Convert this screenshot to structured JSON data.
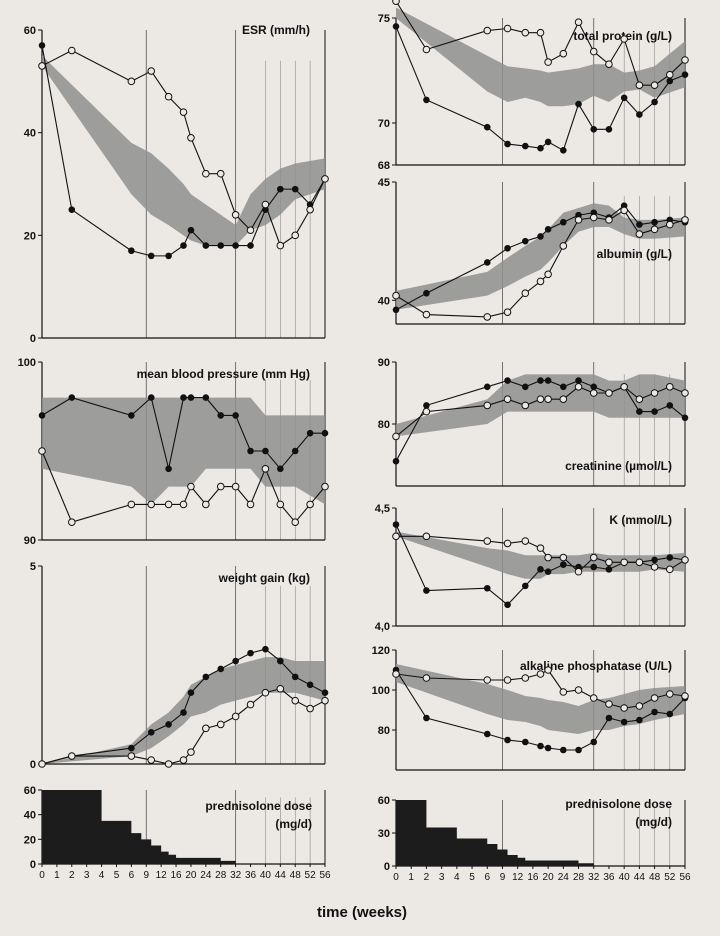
{
  "figure": {
    "xlabel": "time (weeks)"
  },
  "x_weeks": [
    0,
    1,
    2,
    3,
    4,
    5,
    6,
    8,
    10,
    12,
    14,
    16,
    18,
    20,
    22,
    24,
    26,
    28,
    30,
    32,
    34,
    36,
    38,
    40,
    42,
    44,
    46,
    48,
    50,
    52,
    54,
    56
  ],
  "chart_data": [
    {
      "id": "esr",
      "type": "line",
      "title": "ESR (mm/h)",
      "ylim": [
        0,
        60
      ],
      "yticks": [
        0,
        20,
        40,
        60
      ],
      "ytick_labels": [
        "0",
        "20",
        "40",
        "60"
      ],
      "x": [
        0,
        2,
        6,
        10,
        14,
        18,
        20,
        24,
        28,
        32,
        36,
        40,
        44,
        48,
        52,
        56
      ],
      "series": [
        {
          "marker": "filled",
          "values": [
            57,
            25,
            17,
            16,
            16,
            18,
            21,
            18,
            18,
            18,
            18,
            25,
            29,
            29,
            26,
            31
          ]
        },
        {
          "marker": "open",
          "values": [
            53,
            56,
            50,
            52,
            47,
            44,
            39,
            32,
            32,
            24,
            21,
            26,
            18,
            20,
            25,
            31
          ]
        }
      ],
      "band": {
        "lower": [
          53,
          28,
          24,
          22,
          20,
          19,
          18,
          18,
          18,
          21,
          22,
          24,
          27,
          29
        ],
        "upper": [
          55,
          38,
          36,
          33,
          30,
          28,
          26,
          24,
          22,
          28,
          31,
          33,
          34,
          35
        ],
        "x": [
          0,
          6,
          10,
          14,
          18,
          20,
          24,
          28,
          32,
          36,
          40,
          44,
          48,
          56
        ]
      },
      "vlines": [
        9,
        32
      ]
    },
    {
      "id": "bp",
      "type": "line",
      "title": "mean blood pressure (mm Hg)",
      "ylim": [
        90,
        100
      ],
      "yticks": [
        90,
        100
      ],
      "ytick_labels": [
        "90",
        "100"
      ],
      "x": [
        0,
        2,
        6,
        10,
        14,
        18,
        20,
        24,
        28,
        32,
        36,
        40,
        44,
        48,
        52,
        56
      ],
      "series": [
        {
          "marker": "filled",
          "values": [
            97,
            98,
            97,
            98,
            94,
            98,
            98,
            98,
            97,
            97,
            95,
            95,
            94,
            95,
            96,
            96
          ]
        },
        {
          "marker": "open",
          "values": [
            95,
            91,
            92,
            92,
            92,
            92,
            93,
            92,
            93,
            93,
            92,
            94,
            92,
            91,
            92,
            93
          ]
        }
      ],
      "band": {
        "lower": [
          94,
          93,
          92,
          93,
          93,
          93,
          94,
          94,
          94,
          94,
          93,
          93,
          93,
          92
        ],
        "upper": [
          98,
          98,
          98,
          98,
          98,
          98,
          98,
          98,
          98,
          98,
          97,
          97,
          97,
          97
        ],
        "x": [
          0,
          6,
          10,
          14,
          18,
          20,
          24,
          28,
          32,
          36,
          40,
          44,
          48,
          56
        ]
      },
      "vlines": [
        9,
        32
      ]
    },
    {
      "id": "weight",
      "type": "line",
      "title": "weight gain (kg)",
      "ylim": [
        0,
        5
      ],
      "yticks": [
        0,
        5
      ],
      "ytick_labels": [
        "0",
        "5"
      ],
      "x": [
        0,
        2,
        6,
        10,
        14,
        18,
        20,
        24,
        28,
        32,
        36,
        40,
        44,
        48,
        52,
        56
      ],
      "series": [
        {
          "marker": "filled",
          "values": [
            0,
            0.2,
            0.4,
            0.8,
            1.0,
            1.3,
            1.8,
            2.2,
            2.4,
            2.6,
            2.8,
            2.9,
            2.6,
            2.2,
            2.0,
            1.8
          ]
        },
        {
          "marker": "open",
          "values": [
            0,
            0.2,
            0.2,
            0.1,
            0,
            0.1,
            0.3,
            0.9,
            1.0,
            1.2,
            1.5,
            1.8,
            1.9,
            1.6,
            1.4,
            1.6
          ]
        }
      ],
      "band": {
        "lower": [
          0,
          0.2,
          0.4,
          0.7,
          1.0,
          1.2,
          1.3,
          1.5,
          1.6,
          1.7,
          1.8,
          1.8,
          1.8,
          1.6
        ],
        "upper": [
          0,
          0.5,
          1.0,
          1.3,
          1.7,
          2.0,
          2.2,
          2.4,
          2.5,
          2.6,
          2.7,
          2.7,
          2.6,
          2.6
        ],
        "x": [
          0,
          6,
          10,
          14,
          18,
          20,
          24,
          28,
          32,
          36,
          40,
          44,
          48,
          56
        ]
      },
      "vlines": [
        9,
        32
      ]
    },
    {
      "id": "total_protein",
      "type": "line",
      "title": "total protein (g/L)",
      "ylim": [
        68,
        75
      ],
      "yticks": [
        68,
        70,
        75
      ],
      "ytick_labels": [
        "68",
        "70",
        "75"
      ],
      "x": [
        0,
        2,
        6,
        10,
        14,
        18,
        20,
        24,
        28,
        32,
        36,
        40,
        44,
        48,
        52,
        56
      ],
      "series": [
        {
          "marker": "filled",
          "values": [
            74.6,
            71.1,
            69.8,
            69.0,
            68.9,
            68.8,
            69.1,
            68.7,
            70.9,
            69.7,
            69.7,
            71.2,
            70.4,
            71.0,
            72.0,
            72.3
          ]
        },
        {
          "marker": "open",
          "values": [
            75.8,
            73.5,
            74.4,
            74.5,
            74.3,
            74.3,
            72.9,
            73.3,
            74.8,
            73.4,
            72.8,
            74.0,
            71.8,
            71.8,
            72.3,
            73.0
          ]
        }
      ],
      "band": {
        "lower": [
          75,
          71.5,
          71.0,
          71.2,
          71.0,
          70.8,
          70.8,
          70.9,
          71.3,
          71.0,
          71.5,
          71.6,
          71.2,
          71.7
        ],
        "upper": [
          75.5,
          73.2,
          72.7,
          72.6,
          72.5,
          72.4,
          72.5,
          72.6,
          72.8,
          72.8,
          72.4,
          72.5,
          72.7,
          73.9
        ],
        "x": [
          0,
          6,
          10,
          14,
          18,
          20,
          24,
          28,
          32,
          36,
          40,
          44,
          48,
          56
        ]
      },
      "vlines": [
        9,
        32
      ]
    },
    {
      "id": "albumin",
      "type": "line",
      "title": "albumin (g/L)",
      "ylim": [
        39,
        45
      ],
      "yticks": [
        40,
        45
      ],
      "ytick_labels": [
        "40",
        "45"
      ],
      "x": [
        0,
        2,
        6,
        10,
        14,
        18,
        20,
        24,
        28,
        32,
        36,
        40,
        44,
        48,
        52,
        56
      ],
      "series": [
        {
          "marker": "filled",
          "values": [
            39.6,
            40.3,
            41.6,
            42.2,
            42.5,
            42.7,
            43.0,
            43.3,
            43.6,
            43.7,
            43.5,
            44.0,
            43.2,
            43.3,
            43.4,
            43.3
          ]
        },
        {
          "marker": "open",
          "values": [
            40.2,
            39.4,
            39.3,
            39.5,
            40.3,
            40.8,
            41.1,
            42.3,
            43.4,
            43.5,
            43.4,
            43.8,
            42.8,
            43.0,
            43.2,
            43.4
          ]
        }
      ],
      "band": {
        "lower": [
          39.6,
          40.2,
          40.6,
          41.0,
          41.3,
          41.6,
          42.3,
          42.9,
          43.1,
          43.1,
          42.8,
          42.6,
          42.6,
          42.7
        ],
        "upper": [
          40.4,
          41.2,
          41.8,
          42.3,
          42.7,
          43.0,
          43.7,
          43.9,
          44.1,
          44.0,
          43.5,
          43.4,
          43.4,
          43.5
        ],
        "x": [
          0,
          6,
          10,
          14,
          18,
          20,
          24,
          28,
          32,
          36,
          40,
          44,
          48,
          56
        ]
      },
      "vlines": [
        9,
        32
      ]
    },
    {
      "id": "creatinine",
      "type": "line",
      "title": "creatinine (µmol/L)",
      "ylim": [
        70,
        90
      ],
      "yticks": [
        80,
        90
      ],
      "ytick_labels": [
        "80",
        "90"
      ],
      "x": [
        0,
        2,
        6,
        10,
        14,
        18,
        20,
        24,
        28,
        32,
        36,
        40,
        44,
        48,
        52,
        56
      ],
      "series": [
        {
          "marker": "filled",
          "values": [
            74,
            83,
            86,
            87,
            86,
            87,
            87,
            86,
            87,
            86,
            85,
            86,
            82,
            82,
            83,
            81
          ]
        },
        {
          "marker": "open",
          "values": [
            78,
            82,
            83,
            84,
            83,
            84,
            84,
            84,
            86,
            85,
            85,
            86,
            84,
            85,
            86,
            85
          ]
        }
      ],
      "band": {
        "lower": [
          78,
          80,
          82,
          82,
          82,
          82,
          82,
          82,
          82,
          81,
          81,
          81,
          81,
          81
        ],
        "upper": [
          80,
          84,
          87,
          88,
          88,
          88,
          88,
          88,
          88,
          87,
          87,
          88,
          88,
          87
        ],
        "x": [
          0,
          6,
          10,
          14,
          18,
          20,
          24,
          28,
          32,
          36,
          40,
          44,
          48,
          56
        ]
      },
      "vlines": [
        9,
        32
      ]
    },
    {
      "id": "k",
      "type": "line",
      "title": "K (mmol/L)",
      "ylim": [
        4.0,
        4.5
      ],
      "yticks": [
        4.0,
        4.5
      ],
      "ytick_labels": [
        "4,0",
        "4,5"
      ],
      "x": [
        0,
        2,
        6,
        10,
        14,
        18,
        20,
        24,
        28,
        32,
        36,
        40,
        44,
        48,
        52,
        56
      ],
      "series": [
        {
          "marker": "filled",
          "values": [
            4.43,
            4.15,
            4.16,
            4.09,
            4.17,
            4.24,
            4.23,
            4.26,
            4.25,
            4.25,
            4.24,
            4.27,
            4.27,
            4.28,
            4.29,
            4.28
          ]
        },
        {
          "marker": "open",
          "values": [
            4.38,
            4.38,
            4.36,
            4.35,
            4.36,
            4.33,
            4.29,
            4.29,
            4.23,
            4.29,
            4.27,
            4.27,
            4.27,
            4.25,
            4.24,
            4.28
          ]
        }
      ],
      "band": {
        "lower": [
          4.38,
          4.25,
          4.22,
          4.2,
          4.2,
          4.22,
          4.22,
          4.23,
          4.23,
          4.23,
          4.23,
          4.23,
          4.24,
          4.23
        ],
        "upper": [
          4.4,
          4.33,
          4.32,
          4.3,
          4.3,
          4.3,
          4.3,
          4.3,
          4.31,
          4.3,
          4.3,
          4.3,
          4.3,
          4.31
        ],
        "x": [
          0,
          6,
          10,
          14,
          18,
          20,
          24,
          28,
          32,
          36,
          40,
          44,
          48,
          56
        ]
      },
      "vlines": [
        9,
        32
      ]
    },
    {
      "id": "alp",
      "type": "line",
      "title": "alkaline phosphatase (U/L)",
      "ylim": [
        60,
        120
      ],
      "yticks": [
        80,
        100,
        120
      ],
      "ytick_labels": [
        "80",
        "100",
        "120"
      ],
      "x": [
        0,
        2,
        6,
        10,
        14,
        18,
        20,
        24,
        28,
        32,
        36,
        40,
        44,
        48,
        52,
        56
      ],
      "series": [
        {
          "marker": "filled",
          "values": [
            110,
            86,
            78,
            75,
            74,
            72,
            71,
            70,
            70,
            74,
            86,
            84,
            85,
            89,
            88,
            96
          ]
        },
        {
          "marker": "open",
          "values": [
            108,
            106,
            105,
            105,
            106,
            108,
            110,
            99,
            100,
            96,
            93,
            91,
            92,
            96,
            98,
            97
          ]
        }
      ],
      "band": {
        "lower": [
          104,
          88,
          85,
          84,
          82,
          80,
          79,
          78,
          80,
          80,
          82,
          83,
          85,
          88
        ],
        "upper": [
          113,
          103,
          100,
          97,
          96,
          95,
          94,
          92,
          95,
          96,
          98,
          100,
          101,
          102
        ],
        "x": [
          0,
          6,
          10,
          14,
          18,
          20,
          24,
          28,
          32,
          36,
          40,
          44,
          48,
          56
        ]
      },
      "vlines": [
        9,
        32
      ]
    },
    {
      "id": "pred_left",
      "type": "area",
      "title": "prednisolone dose",
      "unit": "(mg/d)",
      "ylim": [
        0,
        60
      ],
      "yticks": [
        0,
        20,
        40,
        60
      ],
      "ytick_labels": [
        "0",
        "20",
        "40",
        "60"
      ],
      "steps": {
        "x": [
          0,
          2,
          4,
          6,
          8,
          10,
          12,
          14,
          16,
          20,
          24,
          28,
          30,
          32
        ],
        "values": [
          60,
          60,
          35,
          25,
          20,
          15,
          10,
          7.5,
          5,
          5,
          5,
          2.5,
          2.5,
          0
        ]
      },
      "vlines": [
        9,
        32
      ]
    },
    {
      "id": "pred_right",
      "type": "area",
      "title": "prednisolone dose",
      "unit": "(mg/d)",
      "ylim": [
        0,
        60
      ],
      "yticks": [
        0,
        30,
        60
      ],
      "ytick_labels": [
        "0",
        "30",
        "60"
      ],
      "steps": {
        "x": [
          0,
          1,
          2,
          4,
          6,
          8,
          10,
          12,
          14,
          16,
          20,
          24,
          28,
          30,
          32
        ],
        "values": [
          60,
          60,
          35,
          25,
          20,
          15,
          10,
          7.5,
          5,
          5,
          5,
          5,
          2.5,
          2.5,
          0
        ]
      },
      "vlines": [
        9,
        32
      ]
    }
  ],
  "xtick_labels": [
    "0",
    "1",
    "2",
    "3",
    "4",
    "5",
    "6",
    "9",
    "12",
    "16",
    "20",
    "24",
    "28",
    "32",
    "36",
    "40",
    "44",
    "48",
    "52",
    "56"
  ],
  "xtick_weeks": [
    0,
    1,
    2,
    3,
    4,
    5,
    6,
    9,
    12,
    16,
    20,
    24,
    28,
    32,
    36,
    40,
    44,
    48,
    52,
    56
  ]
}
